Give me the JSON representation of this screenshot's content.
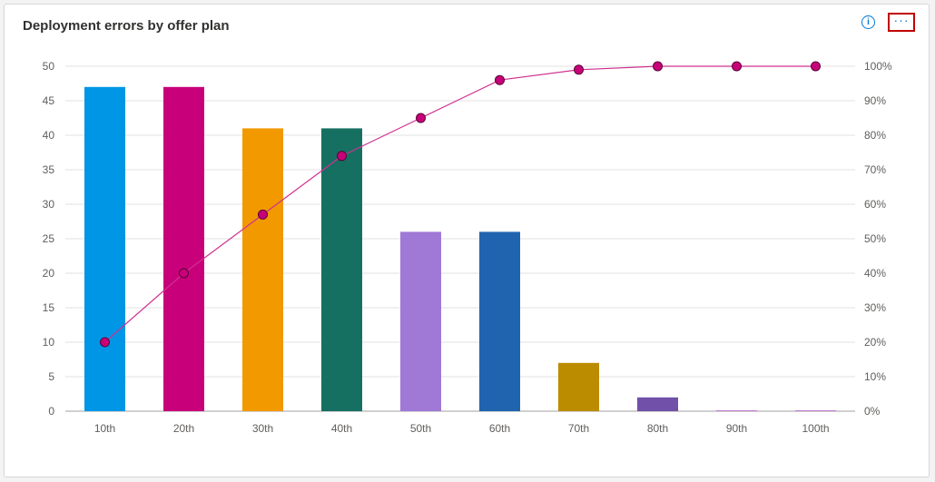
{
  "card": {
    "title": "Deployment errors by offer plan",
    "info_icon": "info-icon",
    "more_label": "···"
  },
  "chart_data": {
    "type": "bar",
    "title": "Deployment errors by offer plan",
    "categories": [
      "10th",
      "20th",
      "30th",
      "40th",
      "50th",
      "60th",
      "70th",
      "80th",
      "90th",
      "100th"
    ],
    "series": [
      {
        "type": "bar",
        "values": [
          47,
          47,
          41,
          41,
          26,
          26,
          7,
          2,
          0.1,
          0.1
        ],
        "colors": [
          "#0096e6",
          "#c8007a",
          "#f29900",
          "#167062",
          "#a078d6",
          "#2064b0",
          "#bb8b00",
          "#7050a8",
          "#c07ad0",
          "#c07ad0"
        ]
      },
      {
        "type": "line",
        "axis": "right",
        "values": [
          20,
          40,
          57,
          74,
          85,
          96,
          99,
          100,
          100,
          100
        ],
        "color": "#d03090",
        "marker_color": "#c8007a"
      }
    ],
    "ylim": [
      0,
      50
    ],
    "yticks": [
      0,
      5,
      10,
      15,
      20,
      25,
      30,
      35,
      40,
      45,
      50
    ],
    "y2lim": [
      0,
      100
    ],
    "y2ticks": [
      "0%",
      "10%",
      "20%",
      "30%",
      "40%",
      "50%",
      "60%",
      "70%",
      "80%",
      "90%",
      "100%"
    ],
    "grid": true
  }
}
